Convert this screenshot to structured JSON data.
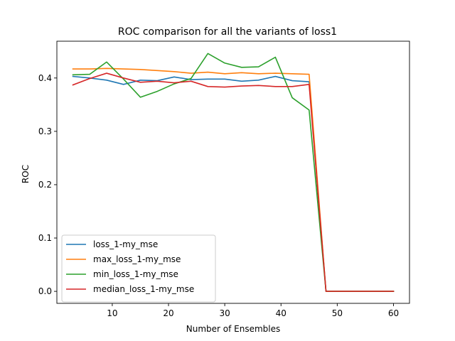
{
  "chart_data": {
    "type": "line",
    "title": "ROC comparison for all the variants of loss1",
    "xlabel": "Number of Ensembles",
    "ylabel": "ROC",
    "xlim": [
      0.15,
      62.85
    ],
    "ylim": [
      -0.0225,
      0.469
    ],
    "xticks": [
      10,
      20,
      30,
      40,
      50,
      60
    ],
    "yticks": [
      0.0,
      0.1,
      0.2,
      0.3,
      0.4
    ],
    "ytick_labels": [
      "0.0",
      "0.1",
      "0.2",
      "0.3",
      "0.4"
    ],
    "grid": false,
    "legend_position": "lower-left",
    "x": [
      3,
      6,
      9,
      12,
      15,
      18,
      21,
      24,
      27,
      30,
      33,
      36,
      39,
      42,
      45,
      48,
      51,
      54,
      57,
      60
    ],
    "series": [
      {
        "name": "loss_1-my_mse",
        "color": "#1f77b4",
        "values": [
          0.403,
          0.4,
          0.396,
          0.388,
          0.396,
          0.395,
          0.402,
          0.397,
          0.398,
          0.398,
          0.394,
          0.396,
          0.403,
          0.395,
          0.393,
          0.0,
          0.0,
          0.0,
          0.0,
          0.0
        ]
      },
      {
        "name": "max_loss_1-my_mse",
        "color": "#ff7f0e",
        "values": [
          0.417,
          0.417,
          0.418,
          0.417,
          0.416,
          0.414,
          0.412,
          0.409,
          0.411,
          0.408,
          0.41,
          0.408,
          0.409,
          0.408,
          0.407,
          0.0,
          0.0,
          0.0,
          0.0,
          0.0
        ]
      },
      {
        "name": "min_loss_1-my_mse",
        "color": "#2ca02c",
        "values": [
          0.406,
          0.407,
          0.43,
          0.398,
          0.364,
          0.375,
          0.389,
          0.399,
          0.446,
          0.428,
          0.42,
          0.421,
          0.439,
          0.363,
          0.34,
          0.0,
          0.0,
          0.0,
          0.0,
          0.0
        ]
      },
      {
        "name": "median_loss_1-my_mse",
        "color": "#d62728",
        "values": [
          0.387,
          0.399,
          0.409,
          0.4,
          0.392,
          0.394,
          0.391,
          0.394,
          0.384,
          0.383,
          0.385,
          0.386,
          0.384,
          0.384,
          0.388,
          0.0,
          0.0,
          0.0,
          0.0,
          0.0
        ]
      }
    ]
  }
}
